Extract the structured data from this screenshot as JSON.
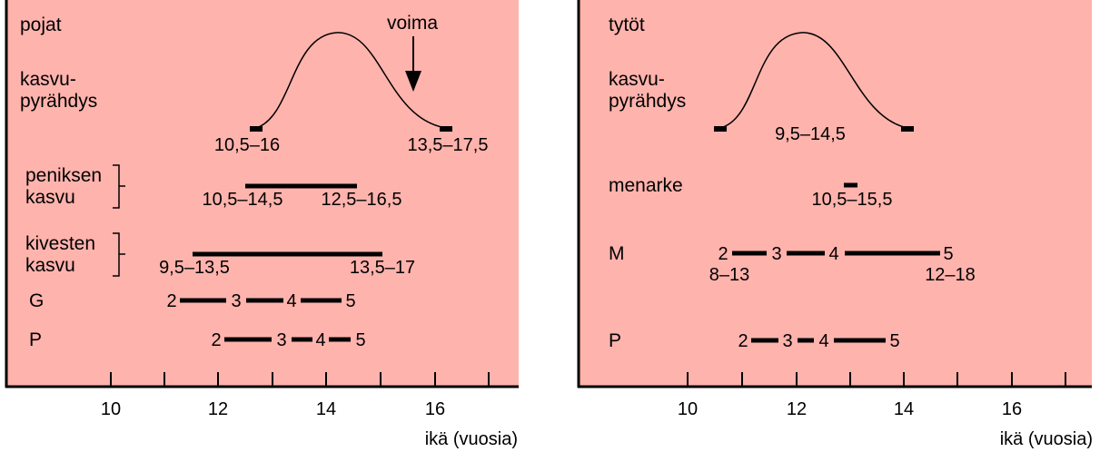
{
  "left": {
    "title": "pojat",
    "voima_label": "voima",
    "growth_label_1": "kasvu-",
    "growth_label_2": "pyrähdys",
    "growth_start_range": "10,5–16",
    "growth_end_range": "13,5–17,5",
    "penis_label_1": "peniksen",
    "penis_label_2": "kasvu",
    "penis_start_range": "10,5–14,5",
    "penis_end_range": "12,5–16,5",
    "testes_label_1": "kivesten",
    "testes_label_2": "kasvu",
    "testes_start_range": "9,5–13,5",
    "testes_end_range": "13,5–17",
    "g_label": "G",
    "g_stages": [
      "2",
      "3",
      "4",
      "5"
    ],
    "p_label": "P",
    "p_stages": [
      "2",
      "3",
      "4",
      "5"
    ],
    "ticks": [
      "10",
      "12",
      "14",
      "16"
    ],
    "axis_label": "ikä (vuosia)"
  },
  "right": {
    "title": "tytöt",
    "growth_label_1": "kasvu-",
    "growth_label_2": "pyrähdys",
    "growth_range": "9,5–14,5",
    "menarche_label": "menarke",
    "menarche_range": "10,5–15,5",
    "m_label": "M",
    "m_stages": [
      "2",
      "3",
      "4",
      "5"
    ],
    "m_start_range": "8–13",
    "m_end_range": "12–18",
    "p_label": "P",
    "p_stages": [
      "2",
      "3",
      "4",
      "5"
    ],
    "ticks": [
      "10",
      "12",
      "14",
      "16"
    ],
    "axis_label": "ikä (vuosia)"
  },
  "colors": {
    "panel_bg": "#ffb3ad",
    "ink": "#000000"
  }
}
